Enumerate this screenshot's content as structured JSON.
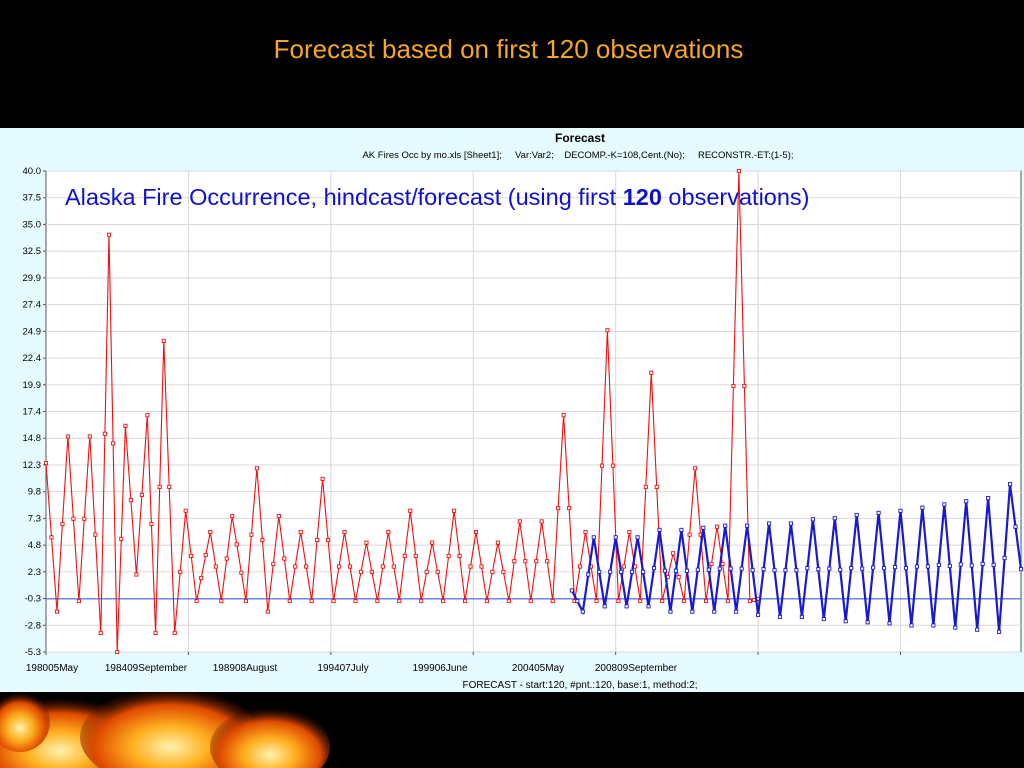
{
  "slide": {
    "title": "Forecast based on first 120 observations"
  },
  "colors": {
    "observed": "#ee1111",
    "forecast": "#1a1acc",
    "baseline": "#3355ee",
    "title": "#f5a623",
    "panel": "#e6fbff",
    "annotation": "#1010cc"
  },
  "chart_data": {
    "type": "line",
    "title": "Forecast",
    "subtitle": "AK Fires Occ by mo.xls [Sheet1];     Var:Var2;    DECOMP.-K=108,Cent.(No);     RECONSTR.-ET:(1-5);",
    "annotation": {
      "prefix": "Alaska Fire Occurrence, hindcast/forecast (using first ",
      "bold": "120",
      "suffix": " observations)"
    },
    "xlabel": "FORECAST - start:120, #pnt.:120, base:1, method:2;",
    "x_tick_labels": [
      "198005May",
      "198409September",
      "198908August",
      "199407July",
      "199906June",
      "200405May",
      "200809September"
    ],
    "y_tick_labels": [
      "40.0",
      "37.5",
      "35.0",
      "32.5",
      "29.9",
      "27.4",
      "24.9",
      "22.4",
      "19.9",
      "17.4",
      "14.8",
      "12.3",
      "9.8",
      "7.3",
      "4.8",
      "2.3",
      "-0.3",
      "-2.8",
      "-5.3"
    ],
    "ylim": [
      -5.3,
      40.0
    ],
    "x_index_range": [
      0,
      356
    ],
    "grid": true,
    "baseline_value": -0.3,
    "series": [
      {
        "style": "red",
        "peaks": [
          [
            0,
            12.5
          ],
          [
            4,
            -1.5
          ],
          [
            8,
            15
          ],
          [
            12,
            -0.5
          ],
          [
            16,
            15
          ],
          [
            20,
            -3.5
          ],
          [
            23,
            34
          ],
          [
            26,
            -5.3
          ],
          [
            29,
            16
          ],
          [
            33,
            2
          ],
          [
            37,
            17
          ],
          [
            40,
            -3.5
          ],
          [
            43,
            24
          ],
          [
            47,
            -3.5
          ],
          [
            51,
            8
          ],
          [
            55,
            -0.5
          ],
          [
            60,
            6
          ],
          [
            64,
            -0.5
          ],
          [
            68,
            7.5
          ],
          [
            73,
            -0.5
          ],
          [
            77,
            12
          ],
          [
            81,
            -1.5
          ],
          [
            85,
            7.5
          ],
          [
            89,
            -0.5
          ],
          [
            93,
            6
          ],
          [
            97,
            -0.5
          ],
          [
            101,
            11
          ],
          [
            105,
            -0.5
          ],
          [
            109,
            6
          ],
          [
            113,
            -0.5
          ],
          [
            117,
            5
          ],
          [
            121,
            -0.5
          ],
          [
            125,
            6
          ],
          [
            129,
            -0.5
          ],
          [
            133,
            8
          ],
          [
            137,
            -0.5
          ],
          [
            141,
            5
          ],
          [
            145,
            -0.5
          ],
          [
            149,
            8
          ],
          [
            153,
            -0.5
          ],
          [
            157,
            6
          ],
          [
            161,
            -0.5
          ],
          [
            165,
            5
          ],
          [
            169,
            -0.5
          ],
          [
            173,
            7
          ],
          [
            177,
            -0.5
          ],
          [
            181,
            7
          ],
          [
            185,
            -0.5
          ],
          [
            189,
            17
          ],
          [
            193,
            -0.5
          ],
          [
            197,
            6
          ],
          [
            201,
            -0.5
          ],
          [
            205,
            25
          ],
          [
            209,
            -0.5
          ],
          [
            213,
            6
          ],
          [
            217,
            -0.5
          ],
          [
            221,
            21
          ],
          [
            225,
            -0.5
          ],
          [
            229,
            4
          ],
          [
            233,
            -0.5
          ],
          [
            237,
            12
          ],
          [
            241,
            -0.5
          ],
          [
            245,
            6.5
          ],
          [
            249,
            -0.5
          ],
          [
            253,
            40
          ],
          [
            257,
            -0.5
          ],
          [
            260,
            -0.3
          ]
        ]
      },
      {
        "style": "blue",
        "peaks": [
          [
            192,
            0.5
          ],
          [
            196,
            -1.5
          ],
          [
            200,
            5.5
          ],
          [
            204,
            -1
          ],
          [
            208,
            5.5
          ],
          [
            212,
            -1
          ],
          [
            216,
            5.5
          ],
          [
            220,
            -1
          ],
          [
            224,
            6.2
          ],
          [
            228,
            -1.5
          ],
          [
            232,
            6.2
          ],
          [
            236,
            -1.5
          ],
          [
            240,
            6.4
          ],
          [
            244,
            -1.5
          ],
          [
            248,
            6.6
          ],
          [
            252,
            -1.5
          ],
          [
            256,
            6.6
          ],
          [
            260,
            -1.8
          ],
          [
            264,
            6.8
          ],
          [
            268,
            -2
          ],
          [
            272,
            6.8
          ],
          [
            276,
            -2
          ],
          [
            280,
            7.2
          ],
          [
            284,
            -2.2
          ],
          [
            288,
            7.3
          ],
          [
            292,
            -2.4
          ],
          [
            296,
            7.6
          ],
          [
            300,
            -2.5
          ],
          [
            304,
            7.8
          ],
          [
            308,
            -2.6
          ],
          [
            312,
            8
          ],
          [
            316,
            -2.8
          ],
          [
            320,
            8.3
          ],
          [
            324,
            -2.8
          ],
          [
            328,
            8.6
          ],
          [
            332,
            -3
          ],
          [
            336,
            8.9
          ],
          [
            340,
            -3.2
          ],
          [
            344,
            9.2
          ],
          [
            348,
            -3.4
          ],
          [
            352,
            10.5
          ],
          [
            356,
            2.5
          ]
        ]
      }
    ]
  }
}
